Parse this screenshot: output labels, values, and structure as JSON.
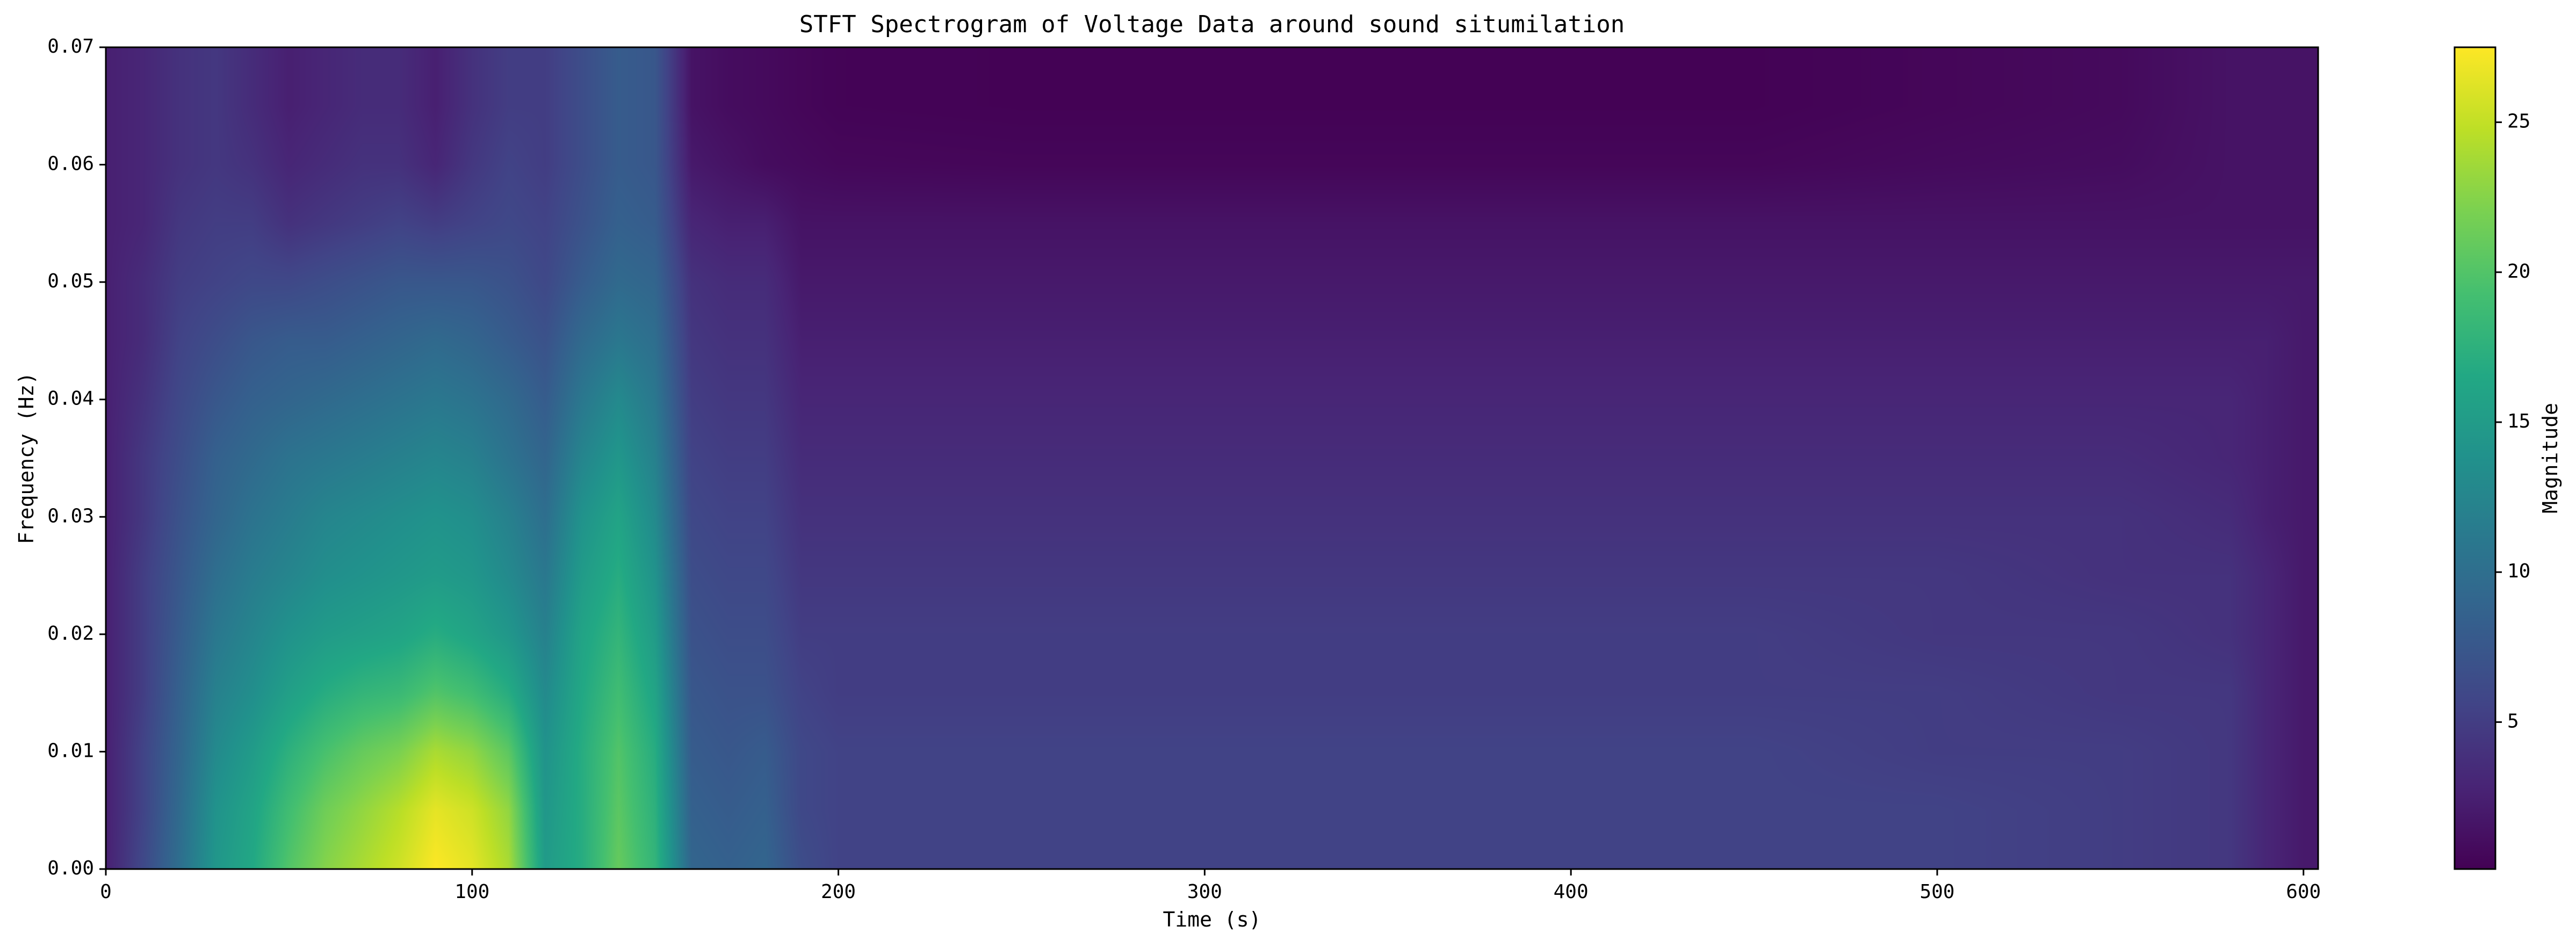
{
  "chart_data": {
    "type": "heatmap",
    "title": "STFT Spectrogram of Voltage Data around sound situmilation",
    "xlabel": "Time (s)",
    "ylabel": "Frequency (Hz)",
    "colorbar_label": "Magnitude",
    "colormap": "viridis",
    "xlim": [
      0,
      604
    ],
    "ylim": [
      0,
      0.07
    ],
    "clim": [
      0.1,
      27.5
    ],
    "x_ticks": [
      0,
      100,
      200,
      300,
      400,
      500,
      600
    ],
    "x_tick_labels": [
      "0",
      "100",
      "200",
      "300",
      "400",
      "500",
      "600"
    ],
    "y_ticks": [
      0.0,
      0.01,
      0.02,
      0.03,
      0.04,
      0.05,
      0.06,
      0.07
    ],
    "y_tick_labels": [
      "0.00",
      "0.01",
      "0.02",
      "0.03",
      "0.04",
      "0.05",
      "0.06",
      "0.07"
    ],
    "colorbar_ticks": [
      5,
      10,
      15,
      20,
      25
    ],
    "colorbar_tick_labels": [
      "5",
      "10",
      "15",
      "20",
      "25"
    ],
    "time_s": [
      0,
      10,
      20,
      30,
      40,
      50,
      60,
      70,
      80,
      90,
      100,
      110,
      120,
      130,
      140,
      150,
      160,
      170,
      180,
      190,
      200,
      250,
      300,
      350,
      400,
      450,
      500,
      550,
      580,
      590,
      600,
      604
    ],
    "frequency_hz": [
      0.0,
      0.005,
      0.01,
      0.015,
      0.02,
      0.025,
      0.03,
      0.035,
      0.04,
      0.045,
      0.05,
      0.055,
      0.06,
      0.065,
      0.07
    ],
    "magnitude": [
      [
        2.5,
        6.0,
        10.0,
        14.5,
        16.5,
        20.0,
        22.5,
        24.0,
        25.5,
        27.5,
        26.5,
        24.0,
        15.0,
        17.0,
        21.0,
        18.0,
        9.0,
        8.5,
        9.0,
        6.5,
        5.5,
        5.5,
        5.5,
        5.5,
        5.5,
        5.5,
        5.5,
        5.0,
        4.5,
        3.0,
        2.0,
        2.0
      ],
      [
        2.5,
        5.5,
        9.5,
        14.0,
        16.0,
        19.0,
        21.5,
        23.0,
        24.5,
        26.5,
        25.5,
        23.0,
        14.5,
        17.0,
        20.5,
        17.5,
        8.5,
        8.0,
        8.5,
        6.0,
        5.5,
        5.5,
        5.5,
        5.5,
        5.5,
        5.5,
        5.5,
        5.0,
        4.5,
        3.0,
        2.0,
        2.0
      ],
      [
        2.5,
        5.5,
        9.0,
        13.0,
        15.0,
        17.5,
        19.5,
        21.0,
        22.0,
        24.0,
        23.0,
        20.5,
        14.0,
        17.0,
        20.0,
        17.0,
        8.0,
        7.5,
        8.0,
        6.0,
        5.5,
        5.5,
        5.5,
        5.5,
        5.5,
        5.5,
        5.0,
        5.0,
        4.5,
        3.0,
        2.0,
        2.0
      ],
      [
        2.5,
        5.0,
        8.5,
        12.0,
        13.5,
        15.5,
        17.0,
        18.0,
        18.5,
        20.0,
        19.0,
        17.0,
        13.0,
        16.5,
        19.0,
        16.0,
        7.5,
        7.0,
        7.0,
        5.5,
        5.0,
        5.0,
        5.0,
        5.0,
        5.0,
        5.0,
        5.0,
        4.5,
        4.5,
        3.0,
        2.0,
        2.0
      ],
      [
        2.5,
        5.0,
        8.0,
        11.0,
        12.5,
        14.0,
        15.0,
        15.5,
        16.0,
        17.0,
        16.0,
        14.5,
        12.0,
        16.0,
        18.0,
        15.0,
        7.0,
        6.5,
        6.5,
        5.0,
        5.0,
        5.0,
        5.0,
        5.0,
        5.0,
        5.0,
        4.5,
        4.5,
        4.0,
        3.0,
        2.0,
        2.0
      ],
      [
        2.5,
        5.0,
        7.5,
        10.0,
        11.5,
        12.5,
        13.5,
        14.0,
        14.5,
        15.0,
        14.5,
        13.0,
        11.0,
        15.0,
        17.0,
        14.0,
        6.5,
        6.0,
        6.0,
        4.5,
        4.5,
        4.5,
        4.5,
        4.5,
        4.5,
        4.5,
        4.5,
        4.0,
        4.0,
        3.0,
        2.0,
        2.0
      ],
      [
        2.5,
        4.5,
        7.0,
        9.0,
        10.5,
        11.5,
        12.5,
        13.0,
        13.5,
        14.0,
        13.5,
        12.0,
        10.0,
        14.0,
        16.0,
        13.0,
        6.0,
        5.5,
        5.5,
        4.0,
        4.0,
        4.0,
        4.0,
        4.0,
        4.0,
        4.0,
        4.0,
        4.0,
        3.5,
        2.5,
        2.0,
        2.0
      ],
      [
        2.5,
        4.5,
        6.5,
        8.5,
        9.5,
        10.5,
        11.0,
        11.5,
        12.0,
        12.5,
        12.0,
        10.5,
        9.0,
        12.5,
        14.5,
        12.0,
        5.5,
        5.0,
        5.0,
        3.5,
        3.5,
        3.5,
        3.5,
        3.5,
        3.5,
        3.5,
        3.5,
        3.5,
        3.0,
        2.5,
        2.0,
        2.0
      ],
      [
        2.5,
        4.0,
        6.0,
        7.5,
        8.5,
        9.0,
        9.5,
        10.0,
        10.5,
        11.0,
        10.5,
        9.5,
        8.0,
        11.0,
        13.0,
        11.0,
        5.0,
        4.5,
        4.5,
        3.0,
        3.0,
        3.0,
        3.0,
        3.0,
        3.0,
        3.0,
        3.0,
        3.0,
        3.0,
        2.5,
        2.0,
        2.0
      ],
      [
        2.5,
        3.5,
        5.5,
        6.5,
        7.5,
        8.0,
        8.0,
        8.5,
        9.0,
        9.5,
        9.0,
        8.0,
        7.0,
        9.5,
        11.0,
        10.0,
        4.5,
        4.0,
        4.0,
        2.5,
        2.5,
        2.5,
        2.5,
        2.5,
        2.5,
        2.5,
        2.5,
        2.5,
        2.5,
        2.5,
        2.0,
        2.0
      ],
      [
        2.5,
        3.5,
        5.0,
        5.5,
        6.0,
        6.0,
        6.5,
        7.0,
        7.5,
        7.5,
        7.5,
        7.0,
        6.0,
        8.0,
        9.5,
        9.0,
        4.0,
        3.5,
        3.5,
        2.0,
        2.0,
        2.0,
        2.0,
        2.0,
        2.0,
        2.0,
        2.0,
        2.0,
        2.0,
        2.0,
        2.0,
        2.0
      ],
      [
        2.5,
        3.0,
        4.5,
        5.0,
        5.0,
        4.0,
        4.5,
        5.0,
        5.5,
        5.0,
        5.5,
        6.0,
        5.5,
        7.0,
        8.5,
        8.0,
        3.0,
        2.5,
        2.5,
        1.5,
        1.5,
        1.5,
        1.5,
        1.5,
        1.5,
        1.5,
        1.5,
        1.5,
        1.5,
        1.5,
        1.5,
        1.5
      ],
      [
        2.5,
        3.0,
        4.0,
        4.5,
        4.0,
        3.0,
        3.5,
        4.0,
        4.0,
        3.0,
        4.5,
        5.5,
        5.0,
        6.5,
        8.0,
        7.5,
        2.0,
        1.5,
        1.0,
        0.8,
        0.6,
        0.5,
        0.5,
        0.5,
        0.5,
        0.5,
        0.8,
        1.0,
        1.5,
        1.5,
        1.5,
        1.5
      ],
      [
        2.5,
        3.0,
        4.0,
        4.5,
        3.5,
        2.5,
        3.0,
        3.5,
        3.5,
        2.5,
        4.0,
        5.0,
        5.0,
        6.5,
        8.0,
        7.5,
        1.5,
        1.0,
        0.8,
        0.5,
        0.3,
        0.2,
        0.2,
        0.2,
        0.2,
        0.2,
        0.5,
        0.8,
        1.5,
        1.5,
        1.5,
        1.5
      ],
      [
        2.5,
        3.0,
        4.0,
        4.5,
        3.5,
        2.5,
        3.0,
        3.5,
        3.5,
        2.5,
        4.0,
        5.0,
        5.0,
        6.5,
        8.0,
        7.5,
        1.5,
        1.0,
        0.8,
        0.5,
        0.3,
        0.2,
        0.2,
        0.2,
        0.2,
        0.2,
        0.5,
        0.8,
        1.5,
        1.5,
        1.5,
        1.5
      ]
    ]
  }
}
